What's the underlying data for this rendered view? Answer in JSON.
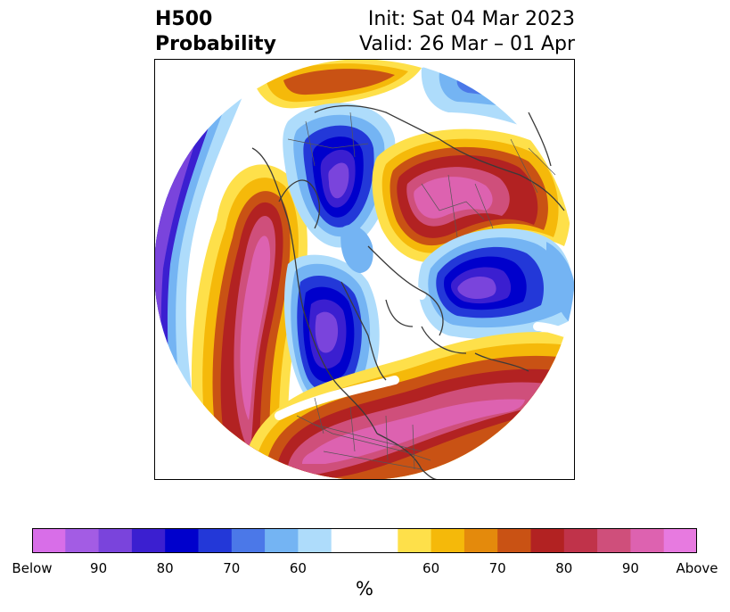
{
  "header": {
    "title_line1": "H500",
    "title_line2": "Probability",
    "init": "Init: Sat 04 Mar 2023",
    "valid": "Valid: 26 Mar – 01 Apr"
  },
  "colorbar": {
    "colors": [
      "#d86ee8",
      "#a35ce4",
      "#7a44dc",
      "#3b1fd0",
      "#0000cc",
      "#2338d8",
      "#4b78e8",
      "#74b4f3",
      "#aedcfb",
      "#ffffff",
      "#fee04a",
      "#f5b90a",
      "#e48a0c",
      "#c95214",
      "#b22222",
      "#c0334a",
      "#cf4f7b",
      "#dd62b0",
      "#e77ae0"
    ],
    "ticks": [
      "Below",
      "90",
      "80",
      "70",
      "60",
      "60",
      "70",
      "80",
      "90",
      "Above"
    ],
    "unit": "%"
  }
}
